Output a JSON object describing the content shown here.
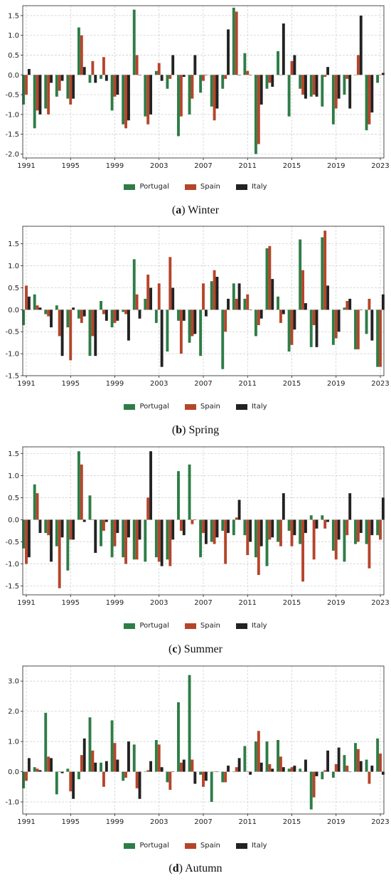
{
  "legend": {
    "series": [
      {
        "name": "Portugal",
        "color": "#2e7d46"
      },
      {
        "name": "Spain",
        "color": "#b5452a"
      },
      {
        "name": "Italy",
        "color": "#222222"
      }
    ]
  },
  "chart_data": [
    {
      "type": "bar",
      "panel_letter": "a",
      "caption_title": "Winter",
      "x": [
        1991,
        1992,
        1993,
        1994,
        1995,
        1996,
        1997,
        1998,
        1999,
        2000,
        2001,
        2002,
        2003,
        2004,
        2005,
        2006,
        2007,
        2008,
        2009,
        2010,
        2011,
        2012,
        2013,
        2014,
        2015,
        2016,
        2017,
        2018,
        2019,
        2020,
        2021,
        2022,
        2023
      ],
      "x_ticks": [
        1991,
        1995,
        1999,
        2003,
        2007,
        2011,
        2015,
        2019,
        2023
      ],
      "ylim": [
        -2.1,
        1.75
      ],
      "y_ticks": [
        -2.0,
        -1.5,
        -1.0,
        -0.5,
        0.0,
        0.5,
        1.0,
        1.5
      ],
      "grid": true,
      "legend_position": "bottom-center",
      "series": [
        {
          "name": "Portugal",
          "values": [
            -0.75,
            -1.35,
            -0.85,
            -0.55,
            -0.6,
            1.2,
            -0.2,
            -0.1,
            -0.9,
            -1.25,
            1.65,
            -1.05,
            0.1,
            -0.35,
            -1.55,
            -1.0,
            -0.45,
            -0.8,
            -0.35,
            1.7,
            0.55,
            -2.0,
            -0.35,
            0.6,
            -1.05,
            -0.35,
            -0.55,
            -0.8,
            -1.25,
            -0.5,
            0.0,
            -1.4,
            -0.2
          ]
        },
        {
          "name": "Spain",
          "values": [
            -0.5,
            -0.9,
            -1.0,
            -0.4,
            -0.75,
            1.0,
            0.35,
            0.45,
            -0.55,
            -1.35,
            0.5,
            -1.25,
            0.3,
            -0.1,
            -1.05,
            -0.6,
            -0.15,
            -1.15,
            -0.1,
            1.6,
            0.1,
            -1.75,
            -0.2,
            0.0,
            0.35,
            -0.5,
            -0.5,
            -0.05,
            -0.85,
            -0.1,
            0.5,
            -1.25,
            0.0
          ]
        },
        {
          "name": "Italy",
          "values": [
            0.15,
            -1.0,
            -0.2,
            -0.15,
            -0.6,
            0.2,
            -0.2,
            -0.15,
            -0.5,
            -1.15,
            0.0,
            -1.0,
            -0.15,
            0.5,
            -0.05,
            0.5,
            0.0,
            -0.85,
            1.15,
            0.0,
            0.0,
            -0.75,
            -0.3,
            1.3,
            0.5,
            -0.6,
            -0.55,
            0.2,
            -0.6,
            -0.85,
            1.5,
            -0.95,
            0.05
          ]
        }
      ]
    },
    {
      "type": "bar",
      "panel_letter": "b",
      "caption_title": "Spring",
      "x": [
        1991,
        1992,
        1993,
        1994,
        1995,
        1996,
        1997,
        1998,
        1999,
        2000,
        2001,
        2002,
        2003,
        2004,
        2005,
        2006,
        2007,
        2008,
        2009,
        2010,
        2011,
        2012,
        2013,
        2014,
        2015,
        2016,
        2017,
        2018,
        2019,
        2020,
        2021,
        2022,
        2023
      ],
      "x_ticks": [
        1991,
        1995,
        1999,
        2003,
        2007,
        2011,
        2015,
        2019,
        2023
      ],
      "ylim": [
        -1.5,
        1.9
      ],
      "y_ticks": [
        -1.5,
        -1.0,
        -0.5,
        0.0,
        0.5,
        1.0,
        1.5
      ],
      "grid": true,
      "legend_position": "bottom-center",
      "series": [
        {
          "name": "Portugal",
          "values": [
            -0.35,
            0.35,
            -0.1,
            0.1,
            -0.4,
            -0.2,
            -1.05,
            0.2,
            -0.4,
            -0.05,
            1.15,
            0.25,
            -0.3,
            -0.95,
            -0.25,
            -0.75,
            -1.05,
            0.65,
            -1.35,
            0.6,
            0.25,
            -0.6,
            1.4,
            0.3,
            -0.95,
            1.6,
            -0.85,
            1.65,
            -0.8,
            0.05,
            -0.9,
            -0.55,
            -1.3
          ]
        },
        {
          "name": "Spain",
          "values": [
            0.55,
            0.1,
            -0.15,
            -0.6,
            -1.15,
            -0.3,
            -0.6,
            -0.1,
            -0.3,
            -0.1,
            0.35,
            0.8,
            0.6,
            1.2,
            -1.0,
            -0.6,
            0.6,
            0.9,
            -0.5,
            0.25,
            0.35,
            -0.35,
            1.45,
            -0.3,
            -0.8,
            0.9,
            -0.35,
            1.8,
            -0.65,
            0.2,
            -0.9,
            0.25,
            -1.3
          ]
        },
        {
          "name": "Italy",
          "values": [
            0.3,
            0.05,
            -0.4,
            -1.05,
            0.05,
            -0.15,
            -1.05,
            -0.25,
            -0.25,
            -0.7,
            -0.2,
            0.5,
            -1.3,
            0.5,
            -0.25,
            -0.55,
            -0.15,
            0.75,
            0.25,
            0.6,
            0.0,
            -0.2,
            0.7,
            -0.1,
            -0.45,
            0.15,
            -0.85,
            0.55,
            -0.5,
            0.25,
            0.0,
            -0.7,
            0.35
          ]
        }
      ]
    },
    {
      "type": "bar",
      "panel_letter": "c",
      "caption_title": "Summer",
      "x": [
        1991,
        1992,
        1993,
        1994,
        1995,
        1996,
        1997,
        1998,
        1999,
        2000,
        2001,
        2002,
        2003,
        2004,
        2005,
        2006,
        2007,
        2008,
        2009,
        2010,
        2011,
        2012,
        2013,
        2014,
        2015,
        2016,
        2017,
        2018,
        2019,
        2020,
        2021,
        2022,
        2023
      ],
      "x_ticks": [
        1991,
        1995,
        1999,
        2003,
        2007,
        2011,
        2015,
        2019,
        2023
      ],
      "ylim": [
        -1.7,
        1.65
      ],
      "y_ticks": [
        -1.5,
        -1.0,
        -0.5,
        0.0,
        0.5,
        1.0,
        1.5
      ],
      "grid": true,
      "legend_position": "bottom-center",
      "series": [
        {
          "name": "Portugal",
          "values": [
            -0.65,
            0.8,
            -0.3,
            -0.6,
            -1.15,
            1.55,
            0.55,
            -0.6,
            -0.85,
            -0.85,
            -0.9,
            -0.95,
            -0.85,
            -0.9,
            1.1,
            1.25,
            -0.85,
            -0.5,
            -0.25,
            -0.35,
            -0.35,
            -0.85,
            -1.05,
            -0.5,
            -0.25,
            -0.55,
            0.1,
            0.1,
            -0.7,
            -0.95,
            -0.55,
            -0.55,
            -0.35
          ]
        },
        {
          "name": "Spain",
          "values": [
            -1.0,
            0.6,
            -0.35,
            -1.55,
            -0.45,
            1.25,
            0.0,
            -0.25,
            -0.6,
            -1.0,
            -0.9,
            0.5,
            -0.95,
            -1.05,
            -0.25,
            -0.1,
            -0.3,
            -0.55,
            -1.0,
            0.05,
            -0.8,
            -1.25,
            -0.45,
            -0.6,
            -0.6,
            -1.4,
            -0.9,
            -0.2,
            -0.9,
            -0.35,
            -0.5,
            -1.1,
            -0.45
          ]
        },
        {
          "name": "Italy",
          "values": [
            -0.85,
            -0.3,
            -0.95,
            -0.4,
            -0.45,
            -0.05,
            -0.75,
            -0.05,
            -0.3,
            -0.4,
            -0.45,
            1.55,
            -1.05,
            -0.45,
            -0.35,
            0.0,
            -0.55,
            -0.4,
            -0.3,
            0.45,
            -0.5,
            -0.6,
            -0.4,
            0.6,
            -0.35,
            -0.3,
            -0.2,
            -0.05,
            -0.45,
            0.6,
            -0.3,
            -0.35,
            0.5
          ]
        }
      ]
    },
    {
      "type": "bar",
      "panel_letter": "d",
      "caption_title": "Autumn",
      "x": [
        1991,
        1992,
        1993,
        1994,
        1995,
        1996,
        1997,
        1998,
        1999,
        2000,
        2001,
        2002,
        2003,
        2004,
        2005,
        2006,
        2007,
        2008,
        2009,
        2010,
        2011,
        2012,
        2013,
        2014,
        2015,
        2016,
        2017,
        2018,
        2019,
        2020,
        2021,
        2022,
        2023
      ],
      "x_ticks": [
        1991,
        1995,
        1999,
        2003,
        2007,
        2011,
        2015,
        2019,
        2023
      ],
      "ylim": [
        -1.4,
        3.5
      ],
      "y_ticks": [
        -1.0,
        0.0,
        1.0,
        2.0,
        3.0
      ],
      "grid": true,
      "legend_position": "bottom-center",
      "series": [
        {
          "name": "Portugal",
          "values": [
            -0.55,
            0.15,
            1.95,
            -0.75,
            0.1,
            -0.25,
            1.8,
            0.3,
            1.7,
            -0.3,
            0.9,
            0.0,
            1.05,
            -0.35,
            2.3,
            3.2,
            -0.1,
            -1.0,
            -0.35,
            0.0,
            0.85,
            1.0,
            1.0,
            1.05,
            0.1,
            0.1,
            -1.25,
            -0.25,
            -0.2,
            0.55,
            0.95,
            0.4,
            1.1
          ]
        },
        {
          "name": "Spain",
          "values": [
            -0.3,
            0.1,
            0.5,
            0.0,
            -0.65,
            0.55,
            0.7,
            -0.5,
            0.95,
            -0.2,
            -0.55,
            0.05,
            0.9,
            -0.6,
            0.3,
            0.4,
            -0.5,
            0.0,
            -0.35,
            0.15,
            0.0,
            1.35,
            0.25,
            0.5,
            0.15,
            0.0,
            -0.85,
            0.05,
            0.25,
            0.2,
            0.75,
            -0.4,
            0.6
          ]
        },
        {
          "name": "Italy",
          "values": [
            0.45,
            0.05,
            0.45,
            -0.05,
            -0.9,
            1.1,
            0.3,
            0.35,
            0.4,
            1.0,
            -0.9,
            0.35,
            0.15,
            0.0,
            0.4,
            -0.4,
            -0.3,
            0.0,
            0.2,
            0.45,
            -0.1,
            0.3,
            0.1,
            0.15,
            0.2,
            0.4,
            -0.15,
            0.7,
            0.8,
            0.0,
            0.35,
            0.2,
            -0.1
          ]
        }
      ]
    }
  ]
}
